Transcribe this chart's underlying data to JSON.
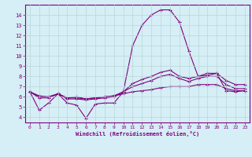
{
  "xlabel": "Windchill (Refroidissement éolien,°C)",
  "x": [
    0,
    1,
    2,
    3,
    4,
    5,
    6,
    7,
    8,
    9,
    10,
    11,
    12,
    13,
    14,
    15,
    16,
    17,
    18,
    19,
    20,
    21,
    22,
    23
  ],
  "line1": [
    6.5,
    4.7,
    5.4,
    6.3,
    5.4,
    5.2,
    3.9,
    5.3,
    5.4,
    5.4,
    6.5,
    11.0,
    13.0,
    14.0,
    14.5,
    14.5,
    13.3,
    10.5,
    8.0,
    8.1,
    8.3,
    6.6,
    6.5,
    6.6
  ],
  "line2": [
    6.5,
    6.1,
    6.0,
    6.3,
    5.9,
    6.0,
    5.8,
    5.9,
    6.0,
    6.1,
    6.3,
    6.5,
    6.6,
    6.7,
    6.9,
    7.0,
    7.0,
    7.0,
    7.2,
    7.2,
    7.2,
    6.8,
    6.6,
    6.6
  ],
  "line3": [
    6.5,
    6.0,
    6.0,
    6.3,
    5.9,
    5.9,
    5.8,
    5.9,
    6.0,
    6.1,
    6.5,
    7.0,
    7.3,
    7.6,
    8.0,
    8.2,
    7.8,
    7.5,
    7.8,
    8.0,
    8.0,
    7.2,
    6.8,
    6.8
  ],
  "line4": [
    6.5,
    5.9,
    5.9,
    6.3,
    5.8,
    5.8,
    5.7,
    5.8,
    5.9,
    6.0,
    6.5,
    7.3,
    7.7,
    8.0,
    8.4,
    8.6,
    8.0,
    7.8,
    8.0,
    8.3,
    8.3,
    7.6,
    7.2,
    7.2
  ],
  "line_color": "#800080",
  "bg_color": "#d6eef5",
  "grid_color": "#b8d8d8",
  "ylim": [
    3.5,
    15.0
  ],
  "xlim": [
    -0.5,
    23.5
  ],
  "yticks": [
    4,
    5,
    6,
    7,
    8,
    9,
    10,
    11,
    12,
    13,
    14
  ],
  "xticks": [
    0,
    1,
    2,
    3,
    4,
    5,
    6,
    7,
    8,
    9,
    10,
    11,
    12,
    13,
    14,
    15,
    16,
    17,
    18,
    19,
    20,
    21,
    22,
    23
  ],
  "figw": 3.2,
  "figh": 2.0,
  "dpi": 100
}
